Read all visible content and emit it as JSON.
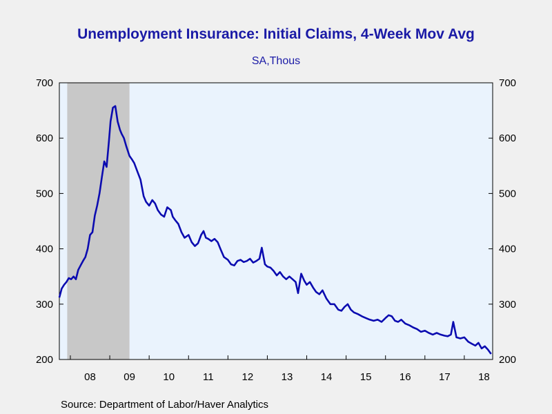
{
  "chart_data": {
    "type": "line",
    "title": "Unemployment Insurance: Initial Claims, 4-Week Mov Avg",
    "subtitle": "SA,Thous",
    "source": "Source:  Department of Labor/Haver Analytics",
    "ylim": [
      200,
      700
    ],
    "yticks": [
      200,
      300,
      400,
      500,
      600,
      700
    ],
    "ytick_labels": [
      "200",
      "300",
      "400",
      "500",
      "600",
      "700"
    ],
    "xlim": [
      2007.72,
      2018.72
    ],
    "xtick_labels": [
      "08",
      "09",
      "10",
      "11",
      "12",
      "13",
      "14",
      "15",
      "16",
      "17",
      "18"
    ],
    "xtick_centers": [
      2008.5,
      2009.5,
      2010.5,
      2011.5,
      2012.5,
      2013.5,
      2014.5,
      2015.5,
      2016.5,
      2017.5,
      2018.5
    ],
    "year_boundaries": [
      2008,
      2009,
      2010,
      2011,
      2012,
      2013,
      2014,
      2015,
      2016,
      2017,
      2018
    ],
    "recession": [
      2007.92,
      2009.5
    ],
    "colors": {
      "line": "#0b0bb0",
      "plot_bg": "#eaf3fd",
      "recession": "#c8c8c8",
      "text": "#1a1aa6"
    },
    "series": [
      {
        "x": [
          2007.72,
          2007.78,
          2007.84,
          2007.9,
          2007.96,
          2008.02,
          2008.08,
          2008.14,
          2008.2,
          2008.26,
          2008.32,
          2008.38,
          2008.44,
          2008.5,
          2008.56,
          2008.62,
          2008.68,
          2008.74,
          2008.8,
          2008.86,
          2008.92,
          2008.98,
          2009.02,
          2009.08,
          2009.14,
          2009.2,
          2009.26,
          2009.3,
          2009.36,
          2009.42,
          2009.5,
          2009.56,
          2009.62,
          2009.7,
          2009.78,
          2009.86,
          2009.92,
          2010.0,
          2010.08,
          2010.15,
          2010.22,
          2010.3,
          2010.38,
          2010.46,
          2010.55,
          2010.6,
          2010.66,
          2010.74,
          2010.82,
          2010.9,
          2011.0,
          2011.08,
          2011.16,
          2011.24,
          2011.32,
          2011.38,
          2011.44,
          2011.5,
          2011.58,
          2011.66,
          2011.74,
          2011.82,
          2011.9,
          2012.0,
          2012.08,
          2012.16,
          2012.24,
          2012.32,
          2012.4,
          2012.48,
          2012.56,
          2012.64,
          2012.72,
          2012.8,
          2012.86,
          2012.94,
          2013.0,
          2013.08,
          2013.16,
          2013.24,
          2013.32,
          2013.4,
          2013.48,
          2013.56,
          2013.64,
          2013.72,
          2013.78,
          2013.86,
          2013.94,
          2014.0,
          2014.08,
          2014.16,
          2014.24,
          2014.32,
          2014.4,
          2014.5,
          2014.6,
          2014.7,
          2014.8,
          2014.88,
          2014.96,
          2015.04,
          2015.12,
          2015.2,
          2015.3,
          2015.4,
          2015.5,
          2015.6,
          2015.7,
          2015.8,
          2015.9,
          2016.0,
          2016.08,
          2016.16,
          2016.24,
          2016.32,
          2016.4,
          2016.5,
          2016.6,
          2016.7,
          2016.8,
          2016.9,
          2017.0,
          2017.1,
          2017.2,
          2017.3,
          2017.4,
          2017.5,
          2017.58,
          2017.66,
          2017.72,
          2017.8,
          2017.9,
          2018.0,
          2018.1,
          2018.2,
          2018.28,
          2018.36,
          2018.44,
          2018.52,
          2018.6,
          2018.68
        ],
        "values": [
          312,
          328,
          335,
          340,
          347,
          345,
          350,
          345,
          362,
          370,
          378,
          385,
          400,
          425,
          430,
          460,
          478,
          500,
          530,
          558,
          548,
          595,
          630,
          655,
          658,
          630,
          615,
          608,
          600,
          585,
          568,
          562,
          555,
          540,
          525,
          495,
          485,
          478,
          488,
          482,
          470,
          462,
          458,
          475,
          470,
          458,
          452,
          445,
          430,
          420,
          425,
          412,
          405,
          410,
          425,
          432,
          420,
          418,
          414,
          418,
          412,
          398,
          385,
          380,
          372,
          370,
          378,
          380,
          376,
          378,
          382,
          375,
          378,
          382,
          402,
          372,
          368,
          366,
          360,
          352,
          358,
          350,
          345,
          350,
          345,
          340,
          320,
          355,
          342,
          335,
          340,
          330,
          322,
          318,
          325,
          310,
          300,
          300,
          290,
          288,
          295,
          300,
          290,
          285,
          282,
          278,
          275,
          272,
          270,
          272,
          268,
          275,
          280,
          278,
          270,
          268,
          272,
          265,
          262,
          258,
          255,
          250,
          252,
          248,
          245,
          248,
          245,
          243,
          242,
          245,
          268,
          240,
          238,
          240,
          232,
          228,
          225,
          230,
          220,
          224,
          218,
          210
        ]
      }
    ]
  }
}
